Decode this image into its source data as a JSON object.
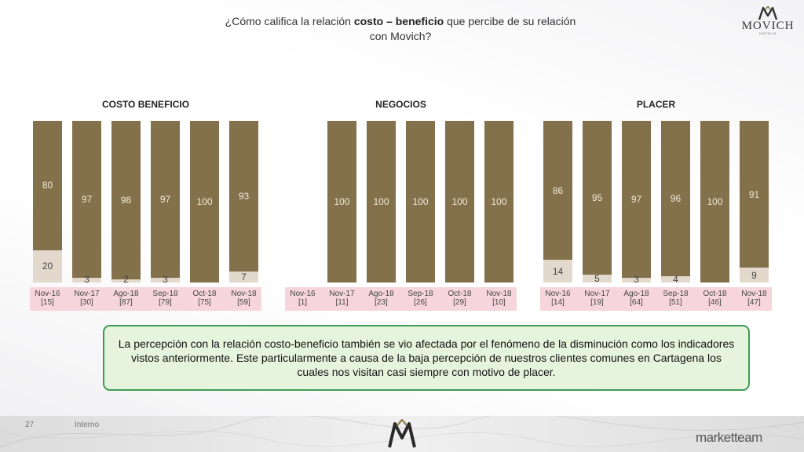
{
  "header": {
    "title_pre": "¿Cómo califica la relación ",
    "title_bold": "costo – beneficio",
    "title_post": " que percibe de su relación",
    "title_line2": "con Movich?",
    "logo_word": "MOVICH",
    "logo_sub": "HOTELS"
  },
  "chart_data": [
    {
      "type": "bar",
      "title": "COSTO BENEFICIO",
      "categories": [
        "Nov-16",
        "Nov-17",
        "Ago-18",
        "Sep-18",
        "Oct-18",
        "Nov-18"
      ],
      "n_labels": [
        "[15]",
        "[30]",
        "[87]",
        "[79]",
        "[75]",
        "[59]"
      ],
      "series": [
        {
          "values": [
            80,
            97,
            98,
            97,
            100,
            93
          ]
        },
        {
          "values": [
            20,
            3,
            2,
            3,
            0,
            7
          ]
        }
      ],
      "ylim": [
        0,
        100
      ],
      "stacked": true
    },
    {
      "type": "bar",
      "title": "NEGOCIOS",
      "categories": [
        "Nov-16",
        "Nov-17",
        "Ago-18",
        "Sep-18",
        "Oct-18",
        "Nov-18"
      ],
      "n_labels": [
        "[1]",
        "[11]",
        "[23]",
        "[26]",
        "[29]",
        "[10]"
      ],
      "series": [
        {
          "values": [
            null,
            100,
            100,
            100,
            100,
            100
          ]
        },
        {
          "values": [
            null,
            0,
            0,
            0,
            0,
            0
          ]
        }
      ],
      "ylim": [
        0,
        100
      ],
      "stacked": true
    },
    {
      "type": "bar",
      "title": "PLACER",
      "categories": [
        "Nov-16",
        "Nov-17",
        "Ago-18",
        "Sep-18",
        "Oct-18",
        "Nov-18"
      ],
      "n_labels": [
        "[14]",
        "[19]",
        "[64]",
        "[51]",
        "[46]",
        "[47]"
      ],
      "series": [
        {
          "values": [
            86,
            95,
            97,
            96,
            100,
            91
          ]
        },
        {
          "values": [
            14,
            5,
            3,
            4,
            0,
            9
          ]
        }
      ],
      "ylim": [
        0,
        100
      ],
      "stacked": true
    }
  ],
  "colors": {
    "top": "#82714a",
    "bottom": "#e2d9cc",
    "band": "#f6d6dc",
    "note_border": "#3d9c52",
    "note_bg": "#e6f3dd"
  },
  "note": {
    "text": "La percepción con la relación costo-beneficio también se vio afectada por el fenómeno de la disminución como los indicadores vistos anteriormente. Este particularmente a causa de la baja percepción de nuestros clientes comunes en Cartagena los cuales nos visitan casi siempre con motivo de placer."
  },
  "footer": {
    "page": "27",
    "label": "Interno",
    "brand": "marketteam"
  }
}
